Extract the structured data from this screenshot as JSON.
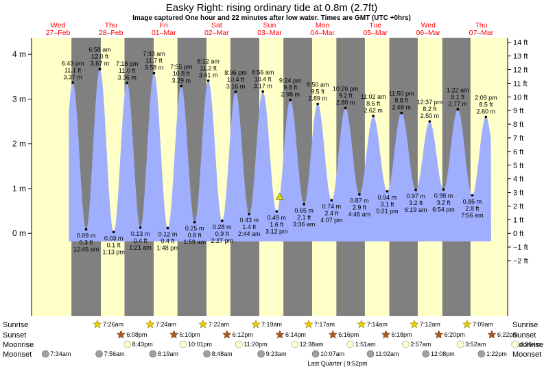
{
  "chart_data": {
    "type": "area",
    "title": "Easky Right: rising  ordinary tide at 0.8m (2.7ft)",
    "subtitle": "Image captured One hour and 22 minutes after low water. Times are GMT (UTC +0hrs)",
    "y_left_ticks": [
      "0 m",
      "1 m",
      "2 m",
      "3 m",
      "4 m"
    ],
    "y_right_ticks": [
      "−2 ft",
      "−1 ft",
      "0 ft",
      "1 ft",
      "2 ft",
      "3 ft",
      "4 ft",
      "5 ft",
      "6 ft",
      "7 ft",
      "8 ft",
      "9 ft",
      "10 ft",
      "11 ft",
      "12 ft",
      "13 ft",
      "14 ft"
    ],
    "ylim_m": [
      -1.85,
      4.37
    ],
    "days": [
      {
        "name": "Wed",
        "date": "27–Feb"
      },
      {
        "name": "Thu",
        "date": "28–Feb"
      },
      {
        "name": "Fri",
        "date": "01–Mar"
      },
      {
        "name": "Sat",
        "date": "02–Mar"
      },
      {
        "name": "Sun",
        "date": "03–Mar"
      },
      {
        "name": "Mon",
        "date": "04–Mar"
      },
      {
        "name": "Tue",
        "date": "05–Mar"
      },
      {
        "name": "Wed",
        "date": "06–Mar"
      },
      {
        "name": "Thu",
        "date": "07–Mar"
      }
    ],
    "tides": [
      {
        "type": "high",
        "hour": 18.72,
        "time": "6:43 pm",
        "ft": "11.1 ft",
        "m": "3.37 m",
        "height": 3.37
      },
      {
        "type": "low",
        "hour": 24.75,
        "time": "12:45 am",
        "ft": "0.3 ft",
        "m": "0.09 m",
        "height": 0.09
      },
      {
        "type": "high",
        "hour": 30.97,
        "time": "6:58 am",
        "ft": "12.0 ft",
        "m": "3.67 m",
        "height": 3.67
      },
      {
        "type": "low",
        "hour": 37.22,
        "time": "1:13 pm",
        "ft": "0.1 ft",
        "m": "0.03 m",
        "height": 0.03
      },
      {
        "type": "high",
        "hour": 43.3,
        "time": "7:18 pm",
        "ft": "11.0 ft",
        "m": "3.36 m",
        "height": 3.36
      },
      {
        "type": "low",
        "hour": 49.35,
        "time": "1:21 am",
        "ft": "0.4 ft",
        "m": "0.13 m",
        "height": 0.13
      },
      {
        "type": "high",
        "hour": 55.55,
        "time": "7:33 am",
        "ft": "11.7 ft",
        "m": "3.58 m",
        "height": 3.58
      },
      {
        "type": "low",
        "hour": 61.8,
        "time": "1:48 pm",
        "ft": "0.4 ft",
        "m": "0.12 m",
        "height": 0.12
      },
      {
        "type": "high",
        "hour": 67.92,
        "time": "7:55 pm",
        "ft": "10.8 ft",
        "m": "3.29 m",
        "height": 3.29
      },
      {
        "type": "low",
        "hour": 73.98,
        "time": "1:59 am",
        "ft": "0.8 ft",
        "m": "0.25 m",
        "height": 0.25
      },
      {
        "type": "high",
        "hour": 80.2,
        "time": "8:12 am",
        "ft": "11.2 ft",
        "m": "3.41 m",
        "height": 3.41
      },
      {
        "type": "low",
        "hour": 86.45,
        "time": "2:27 pm",
        "ft": "0.9 ft",
        "m": "0.28 m",
        "height": 0.28
      },
      {
        "type": "high",
        "hour": 92.6,
        "time": "8:36 pm",
        "ft": "10.4 ft",
        "m": "3.16 m",
        "height": 3.16
      },
      {
        "type": "low",
        "hour": 98.73,
        "time": "2:44 am",
        "ft": "1.4 ft",
        "m": "0.43 m",
        "height": 0.43
      },
      {
        "type": "high",
        "hour": 104.93,
        "time": "8:56 am",
        "ft": "10.4 ft",
        "m": "3.17 m",
        "height": 3.17
      },
      {
        "type": "low",
        "hour": 111.2,
        "time": "3:12 pm",
        "ft": "1.6 ft",
        "m": "0.49 m",
        "height": 0.49
      },
      {
        "type": "high",
        "hour": 117.4,
        "time": "9:24 pm",
        "ft": "9.8 ft",
        "m": "2.98 m",
        "height": 2.98
      },
      {
        "type": "low",
        "hour": 123.6,
        "time": "3:36 am",
        "ft": "2.1 ft",
        "m": "0.65 m",
        "height": 0.65
      },
      {
        "type": "high",
        "hour": 129.83,
        "time": "9:50 am",
        "ft": "9.5 ft",
        "m": "2.89 m",
        "height": 2.89
      },
      {
        "type": "low",
        "hour": 136.12,
        "time": "4:07 pm",
        "ft": "2.4 ft",
        "m": "0.74 m",
        "height": 0.74
      },
      {
        "type": "high",
        "hour": 142.43,
        "time": "10:26 pm",
        "ft": "9.2 ft",
        "m": "2.80 m",
        "height": 2.8
      },
      {
        "type": "low",
        "hour": 148.75,
        "time": "4:45 am",
        "ft": "2.9 ft",
        "m": "0.87 m",
        "height": 0.87
      },
      {
        "type": "high",
        "hour": 155.03,
        "time": "11:02 am",
        "ft": "8.6 ft",
        "m": "2.62 m",
        "height": 2.62
      },
      {
        "type": "low",
        "hour": 161.35,
        "time": "5:21 pm",
        "ft": "3.1 ft",
        "m": "0.94 m",
        "height": 0.94
      },
      {
        "type": "high",
        "hour": 167.83,
        "time": "11:50 pm",
        "ft": "8.8 ft",
        "m": "2.69 m",
        "height": 2.69
      },
      {
        "type": "low",
        "hour": 174.32,
        "time": "6:19 am",
        "ft": "3.2 ft",
        "m": "0.97 m",
        "height": 0.97
      },
      {
        "type": "high",
        "hour": 180.62,
        "time": "12:37 pm",
        "ft": "8.2 ft",
        "m": "2.50 m",
        "height": 2.5
      },
      {
        "type": "low",
        "hour": 186.9,
        "time": "6:54 pm",
        "ft": "3.2 ft",
        "m": "0.98 m",
        "height": 0.98
      },
      {
        "type": "high",
        "hour": 193.37,
        "time": "1:22 am",
        "ft": "9.1 ft",
        "m": "2.77 m",
        "height": 2.77
      },
      {
        "type": "low",
        "hour": 199.93,
        "time": "7:56 am",
        "ft": "2.8 ft",
        "m": "0.85 m",
        "height": 0.85
      },
      {
        "type": "high",
        "hour": 206.15,
        "time": "2:09 pm",
        "ft": "8.5 ft",
        "m": "2.60 m",
        "height": 2.6
      }
    ],
    "start_hour": 16.9,
    "end_hour": 208.5,
    "current_hour": 112.57,
    "current_height": 0.82,
    "nights": [
      [
        18.1,
        31.43
      ],
      [
        42.17,
        55.4
      ],
      [
        66.2,
        79.37
      ],
      [
        90.23,
        103.32
      ],
      [
        114.27,
        127.28
      ],
      [
        138.3,
        151.23
      ],
      [
        162.33,
        175.2
      ],
      [
        186.37,
        199.15
      ]
    ],
    "sunrise": [
      "7:26am",
      "7:24am",
      "7:22am",
      "7:19am",
      "7:17am",
      "7:14am",
      "7:12am",
      "7:09am"
    ],
    "sunset": [
      "6:08pm",
      "6:10pm",
      "6:12pm",
      "6:14pm",
      "6:16pm",
      "6:18pm",
      "6:20pm",
      "6:22pm"
    ],
    "moonrise": [
      "8:43pm",
      "10:01pm",
      "11:20pm",
      "12:38am",
      "1:51am",
      "2:57am",
      "3:52am",
      "4:36am"
    ],
    "moonset": [
      "7:34am",
      "7:56am",
      "8:19am",
      "8:48am",
      "9:23am",
      "10:07am",
      "11:02am",
      "12:08pm",
      "1:22pm"
    ],
    "row_labels": {
      "sunrise": "Sunrise",
      "sunset": "Sunset",
      "moonrise": "Moonrise",
      "moonset": "Moonset"
    },
    "moon_phase": "Last Quarter | 9:52pm",
    "colors": {
      "day_bg": "#ffffc8",
      "night_bg": "#808080",
      "water": "#a0aefe",
      "title_red": "#ff0000",
      "current_marker": "#e0e000",
      "sun_star": "#f0d000",
      "sunset_star": "#b05a1e",
      "moonrise": "#ffffcc",
      "moonset": "#a0a0a0"
    }
  }
}
